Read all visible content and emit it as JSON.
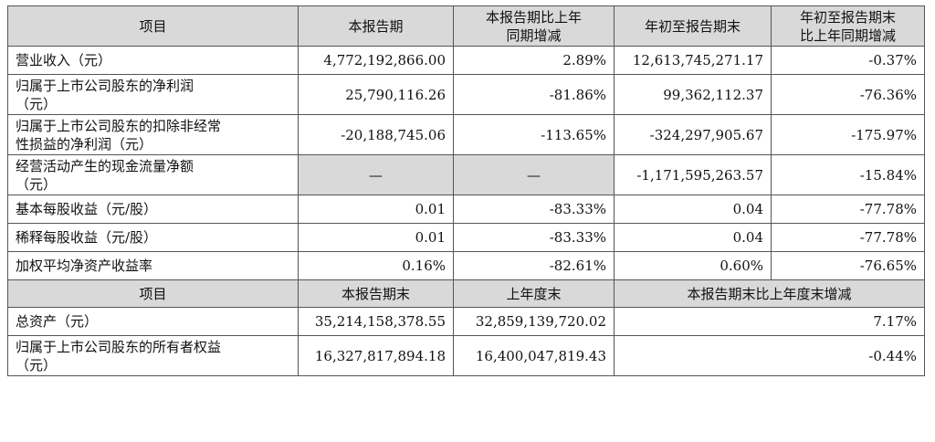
{
  "header1": [
    "项目",
    "本报告期",
    "本报告期比上年\n同期增减",
    "年初至报告期末",
    "年初至报告期末\n比上年同期增减"
  ],
  "rows": [
    {
      "label": "营业收入（元）",
      "v1": "4,772,192,866.00",
      "v2": "2.89%",
      "v3": "12,613,745,271.17",
      "v4": "-0.37%"
    },
    {
      "label": "归属于上市公司股东的净利润\n（元）",
      "v1": "25,790,116.26",
      "v2": "-81.86%",
      "v3": "99,362,112.37",
      "v4": "-76.36%"
    },
    {
      "label": "归属于上市公司股东的扣除非经常\n性损益的净利润（元）",
      "v1": "-20,188,745.06",
      "v2": "-113.65%",
      "v3": "-324,297,905.67",
      "v4": "-175.97%"
    },
    {
      "label": "经营活动产生的现金流量净额\n（元）",
      "v1": "—",
      "v2": "—",
      "v3": "-1,171,595,263.57",
      "v4": "-15.84%"
    },
    {
      "label": "基本每股收益（元/股）",
      "v1": "0.01",
      "v2": "-83.33%",
      "v3": "0.04",
      "v4": "-77.78%"
    },
    {
      "label": "稀释每股收益（元/股）",
      "v1": "0.01",
      "v2": "-83.33%",
      "v3": "0.04",
      "v4": "-77.78%"
    },
    {
      "label": "加权平均净资产收益率",
      "v1": "0.16%",
      "v2": "-82.61%",
      "v3": "0.60%",
      "v4": "-76.65%"
    }
  ],
  "header2": [
    "项目",
    "本报告期末",
    "上年度末",
    "本报告期末比上年度末增减"
  ],
  "rows2": [
    {
      "label": "总资产（元）",
      "v1": "35,214,158,378.55",
      "v2": "32,859,139,720.02",
      "v3": "7.17%"
    },
    {
      "label": "归属于上市公司股东的所有者权益\n（元）",
      "v1": "16,327,817,894.18",
      "v2": "16,400,047,819.43",
      "v3": "-0.44%"
    }
  ]
}
